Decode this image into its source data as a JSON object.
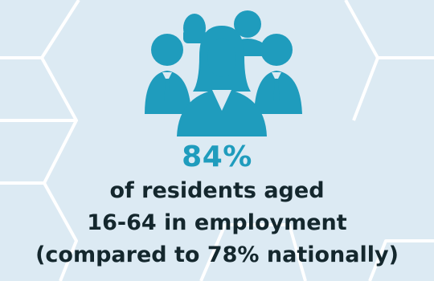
{
  "stat": {
    "value": "84%",
    "lines": [
      "of residents aged",
      "16-64 in employment",
      "(compared to 78% nationally)"
    ]
  },
  "icon": {
    "name": "people-group-icon",
    "color": "#1f9cbd"
  },
  "colors": {
    "background": "#dceaf3",
    "accent": "#1f9cbd",
    "text": "#14272d",
    "lines": "#ffffff"
  }
}
